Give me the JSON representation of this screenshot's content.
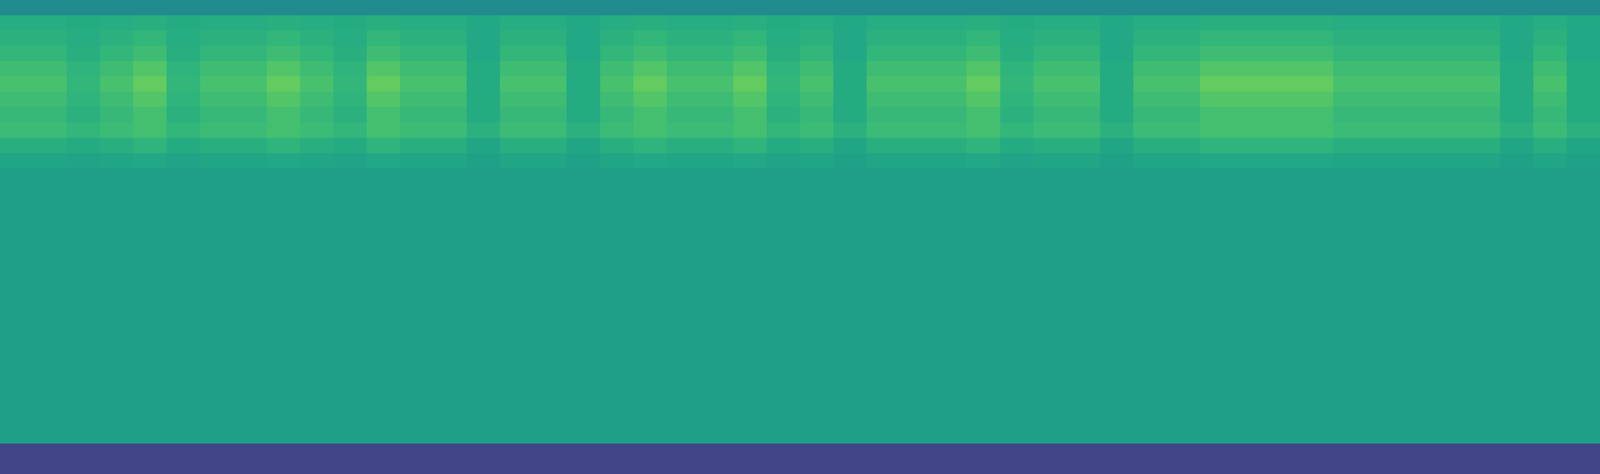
{
  "chart_data": {
    "type": "heatmap",
    "tick_labels": false,
    "zlim": [
      0,
      100
    ],
    "cells": [
      [
        48,
        48,
        48,
        48,
        48,
        48,
        48,
        48,
        48,
        48,
        48,
        48,
        48,
        48,
        48,
        48,
        48,
        48,
        48,
        48,
        48,
        48,
        48,
        48,
        48,
        48,
        48,
        48,
        48,
        48,
        48,
        48,
        48,
        48,
        48,
        48,
        48,
        48,
        48,
        48,
        48,
        48,
        48,
        48,
        48,
        48,
        48,
        48
      ],
      [
        62,
        62,
        61,
        62,
        63,
        61,
        62,
        62,
        63,
        62,
        61,
        63,
        62,
        62,
        60,
        62,
        62,
        60,
        62,
        63,
        62,
        62,
        63,
        61,
        62,
        60,
        62,
        62,
        62,
        63,
        61,
        62,
        62,
        60,
        62,
        62,
        63,
        63,
        63,
        63,
        62,
        62,
        62,
        62,
        62,
        60,
        62,
        60
      ],
      [
        64,
        64,
        62,
        64,
        66,
        62,
        64,
        64,
        66,
        64,
        62,
        66,
        64,
        64,
        60,
        64,
        64,
        60,
        64,
        66,
        64,
        64,
        66,
        62,
        64,
        60,
        64,
        64,
        64,
        66,
        62,
        64,
        64,
        60,
        64,
        64,
        66,
        66,
        66,
        66,
        64,
        64,
        64,
        64,
        64,
        60,
        64,
        60
      ],
      [
        66,
        66,
        63,
        66,
        69,
        63,
        66,
        66,
        69,
        66,
        63,
        69,
        66,
        66,
        60,
        66,
        66,
        60,
        66,
        69,
        66,
        66,
        69,
        63,
        66,
        60,
        66,
        66,
        66,
        69,
        63,
        66,
        66,
        60,
        66,
        66,
        69,
        69,
        69,
        69,
        66,
        66,
        66,
        66,
        66,
        60,
        66,
        60
      ],
      [
        69,
        69,
        65,
        69,
        73,
        65,
        69,
        69,
        73,
        69,
        65,
        73,
        69,
        69,
        61,
        69,
        69,
        61,
        69,
        73,
        69,
        69,
        73,
        65,
        69,
        61,
        69,
        69,
        69,
        73,
        65,
        69,
        69,
        61,
        69,
        69,
        73,
        73,
        73,
        73,
        69,
        69,
        69,
        69,
        69,
        61,
        69,
        61
      ],
      [
        71,
        71,
        66,
        71,
        76,
        66,
        71,
        71,
        76,
        71,
        66,
        76,
        71,
        71,
        61,
        71,
        71,
        61,
        71,
        76,
        71,
        71,
        76,
        66,
        71,
        61,
        71,
        71,
        71,
        76,
        66,
        71,
        71,
        61,
        71,
        71,
        76,
        76,
        76,
        76,
        71,
        71,
        71,
        71,
        71,
        61,
        71,
        61
      ],
      [
        69,
        69,
        65,
        69,
        73,
        65,
        69,
        69,
        73,
        69,
        65,
        73,
        69,
        69,
        61,
        69,
        69,
        61,
        69,
        73,
        69,
        69,
        73,
        65,
        69,
        61,
        69,
        69,
        69,
        73,
        65,
        69,
        69,
        61,
        69,
        69,
        73,
        73,
        73,
        73,
        69,
        69,
        69,
        69,
        69,
        61,
        69,
        61
      ],
      [
        67,
        67,
        64,
        67,
        70,
        64,
        67,
        67,
        70,
        67,
        64,
        70,
        67,
        67,
        61,
        67,
        67,
        61,
        67,
        70,
        67,
        67,
        70,
        64,
        67,
        61,
        67,
        67,
        67,
        70,
        64,
        67,
        67,
        61,
        67,
        67,
        70,
        70,
        70,
        70,
        67,
        67,
        67,
        67,
        67,
        61,
        67,
        61
      ],
      [
        68,
        68,
        66,
        68,
        70,
        66,
        68,
        68,
        70,
        68,
        66,
        70,
        68,
        68,
        64,
        68,
        68,
        64,
        68,
        70,
        68,
        68,
        70,
        66,
        68,
        64,
        68,
        68,
        68,
        70,
        66,
        68,
        68,
        64,
        68,
        68,
        70,
        70,
        70,
        70,
        68,
        68,
        68,
        68,
        68,
        64,
        68,
        64
      ],
      [
        63,
        63,
        61,
        63,
        65,
        61,
        63,
        63,
        65,
        63,
        61,
        65,
        63,
        63,
        59,
        63,
        63,
        59,
        63,
        65,
        63,
        63,
        65,
        61,
        63,
        59,
        63,
        63,
        63,
        65,
        61,
        63,
        63,
        59,
        63,
        63,
        65,
        65,
        65,
        65,
        63,
        63,
        63,
        63,
        63,
        59,
        63,
        59
      ],
      [
        59,
        59,
        58,
        59,
        60,
        58,
        59,
        59,
        60,
        59,
        58,
        60,
        59,
        59,
        57,
        59,
        59,
        57,
        59,
        60,
        59,
        59,
        60,
        58,
        59,
        57,
        59,
        59,
        59,
        60,
        58,
        59,
        59,
        57,
        59,
        59,
        60,
        60,
        60,
        60,
        59,
        59,
        59,
        59,
        59,
        57,
        59,
        57
      ],
      [
        56,
        56,
        56,
        56,
        56,
        56,
        56,
        56,
        56,
        56,
        56,
        56,
        56,
        56,
        56,
        56,
        56,
        56,
        56,
        56,
        56,
        56,
        56,
        56,
        56,
        56,
        56,
        56,
        56,
        56,
        56,
        56,
        56,
        56,
        56,
        56,
        56,
        56,
        56,
        56,
        56,
        56,
        56,
        56,
        56,
        56,
        56,
        56
      ],
      [
        56,
        56,
        56,
        56,
        56,
        56,
        56,
        56,
        56,
        56,
        56,
        56,
        56,
        56,
        56,
        56,
        56,
        56,
        56,
        56,
        56,
        56,
        56,
        56,
        56,
        56,
        56,
        56,
        56,
        56,
        56,
        56,
        56,
        56,
        56,
        56,
        56,
        56,
        56,
        56,
        56,
        56,
        56,
        56,
        56,
        56,
        56,
        56
      ],
      [
        56,
        56,
        56,
        56,
        56,
        56,
        56,
        56,
        56,
        56,
        56,
        56,
        56,
        56,
        56,
        56,
        56,
        56,
        56,
        56,
        56,
        56,
        56,
        56,
        56,
        56,
        56,
        56,
        56,
        56,
        56,
        56,
        56,
        56,
        56,
        56,
        56,
        56,
        56,
        56,
        56,
        56,
        56,
        56,
        56,
        56,
        56,
        56
      ],
      [
        56,
        56,
        56,
        56,
        56,
        56,
        56,
        56,
        56,
        56,
        56,
        56,
        56,
        56,
        56,
        56,
        56,
        56,
        56,
        56,
        56,
        56,
        56,
        56,
        56,
        56,
        56,
        56,
        56,
        56,
        56,
        56,
        56,
        56,
        56,
        56,
        56,
        56,
        56,
        56,
        56,
        56,
        56,
        56,
        56,
        56,
        56,
        56
      ],
      [
        56,
        56,
        56,
        56,
        56,
        56,
        56,
        56,
        56,
        56,
        56,
        56,
        56,
        56,
        56,
        56,
        56,
        56,
        56,
        56,
        56,
        56,
        56,
        56,
        56,
        56,
        56,
        56,
        56,
        56,
        56,
        56,
        56,
        56,
        56,
        56,
        56,
        56,
        56,
        56,
        56,
        56,
        56,
        56,
        56,
        56,
        56,
        56
      ],
      [
        56,
        56,
        56,
        56,
        56,
        56,
        56,
        56,
        56,
        56,
        56,
        56,
        56,
        56,
        56,
        56,
        56,
        56,
        56,
        56,
        56,
        56,
        56,
        56,
        56,
        56,
        56,
        56,
        56,
        56,
        56,
        56,
        56,
        56,
        56,
        56,
        56,
        56,
        56,
        56,
        56,
        56,
        56,
        56,
        56,
        56,
        56,
        56
      ],
      [
        56,
        56,
        56,
        56,
        56,
        56,
        56,
        56,
        56,
        56,
        56,
        56,
        56,
        56,
        56,
        56,
        56,
        56,
        56,
        56,
        56,
        56,
        56,
        56,
        56,
        56,
        56,
        56,
        56,
        56,
        56,
        56,
        56,
        56,
        56,
        56,
        56,
        56,
        56,
        56,
        56,
        56,
        56,
        56,
        56,
        56,
        56,
        56
      ],
      [
        56,
        56,
        56,
        56,
        56,
        56,
        56,
        56,
        56,
        56,
        56,
        56,
        56,
        56,
        56,
        56,
        56,
        56,
        56,
        56,
        56,
        56,
        56,
        56,
        56,
        56,
        56,
        56,
        56,
        56,
        56,
        56,
        56,
        56,
        56,
        56,
        56,
        56,
        56,
        56,
        56,
        56,
        56,
        56,
        56,
        56,
        56,
        56
      ],
      [
        56,
        56,
        56,
        56,
        56,
        56,
        56,
        56,
        56,
        56,
        56,
        56,
        56,
        56,
        56,
        56,
        56,
        56,
        56,
        56,
        56,
        56,
        56,
        56,
        56,
        56,
        56,
        56,
        56,
        56,
        56,
        56,
        56,
        56,
        56,
        56,
        56,
        56,
        56,
        56,
        56,
        56,
        56,
        56,
        56,
        56,
        56,
        56
      ],
      [
        56,
        56,
        56,
        56,
        56,
        56,
        56,
        56,
        56,
        56,
        56,
        56,
        56,
        56,
        56,
        56,
        56,
        56,
        56,
        56,
        56,
        56,
        56,
        56,
        56,
        56,
        56,
        56,
        56,
        56,
        56,
        56,
        56,
        56,
        56,
        56,
        56,
        56,
        56,
        56,
        56,
        56,
        56,
        56,
        56,
        56,
        56,
        56
      ],
      [
        56,
        56,
        56,
        56,
        56,
        56,
        56,
        56,
        56,
        56,
        56,
        56,
        56,
        56,
        56,
        56,
        56,
        56,
        56,
        56,
        56,
        56,
        56,
        56,
        56,
        56,
        56,
        56,
        56,
        56,
        56,
        56,
        56,
        56,
        56,
        56,
        56,
        56,
        56,
        56,
        56,
        56,
        56,
        56,
        56,
        56,
        56,
        56
      ],
      [
        56,
        56,
        56,
        56,
        56,
        56,
        56,
        56,
        56,
        56,
        56,
        56,
        56,
        56,
        56,
        56,
        56,
        56,
        56,
        56,
        56,
        56,
        56,
        56,
        56,
        56,
        56,
        56,
        56,
        56,
        56,
        56,
        56,
        56,
        56,
        56,
        56,
        56,
        56,
        56,
        56,
        56,
        56,
        56,
        56,
        56,
        56,
        56
      ],
      [
        56,
        56,
        56,
        56,
        56,
        56,
        56,
        56,
        56,
        56,
        56,
        56,
        56,
        56,
        56,
        56,
        56,
        56,
        56,
        56,
        56,
        56,
        56,
        56,
        56,
        56,
        56,
        56,
        56,
        56,
        56,
        56,
        56,
        56,
        56,
        56,
        56,
        56,
        56,
        56,
        56,
        56,
        56,
        56,
        56,
        56,
        56,
        56
      ],
      [
        56,
        56,
        56,
        56,
        56,
        56,
        56,
        56,
        56,
        56,
        56,
        56,
        56,
        56,
        56,
        56,
        56,
        56,
        56,
        56,
        56,
        56,
        56,
        56,
        56,
        56,
        56,
        56,
        56,
        56,
        56,
        56,
        56,
        56,
        56,
        56,
        56,
        56,
        56,
        56,
        56,
        56,
        56,
        56,
        56,
        56,
        56,
        56
      ],
      [
        56,
        56,
        56,
        56,
        56,
        56,
        56,
        56,
        56,
        56,
        56,
        56,
        56,
        56,
        56,
        56,
        56,
        56,
        56,
        56,
        56,
        56,
        56,
        56,
        56,
        56,
        56,
        56,
        56,
        56,
        56,
        56,
        56,
        56,
        56,
        56,
        56,
        56,
        56,
        56,
        56,
        56,
        56,
        56,
        56,
        56,
        56,
        56
      ],
      [
        56,
        56,
        56,
        56,
        56,
        56,
        56,
        56,
        56,
        56,
        56,
        56,
        56,
        56,
        56,
        56,
        56,
        56,
        56,
        56,
        56,
        56,
        56,
        56,
        56,
        56,
        56,
        56,
        56,
        56,
        56,
        56,
        56,
        56,
        56,
        56,
        56,
        56,
        56,
        56,
        56,
        56,
        56,
        56,
        56,
        56,
        56,
        56
      ],
      [
        56,
        56,
        56,
        56,
        56,
        56,
        56,
        56,
        56,
        56,
        56,
        56,
        56,
        56,
        56,
        56,
        56,
        56,
        56,
        56,
        56,
        56,
        56,
        56,
        56,
        56,
        56,
        56,
        56,
        56,
        56,
        56,
        56,
        56,
        56,
        56,
        56,
        56,
        56,
        56,
        56,
        56,
        56,
        56,
        56,
        56,
        56,
        56
      ],
      [
        56,
        56,
        56,
        56,
        56,
        56,
        56,
        56,
        56,
        56,
        56,
        56,
        56,
        56,
        56,
        56,
        56,
        56,
        56,
        56,
        56,
        56,
        56,
        56,
        56,
        56,
        56,
        56,
        56,
        56,
        56,
        56,
        56,
        56,
        56,
        56,
        56,
        56,
        56,
        56,
        56,
        56,
        56,
        56,
        56,
        56,
        56,
        56
      ],
      [
        20,
        20,
        20,
        20,
        20,
        20,
        20,
        20,
        20,
        20,
        20,
        20,
        20,
        20,
        20,
        20,
        20,
        20,
        20,
        20,
        20,
        20,
        20,
        20,
        20,
        20,
        20,
        20,
        20,
        20,
        20,
        20,
        20,
        20,
        20,
        20,
        20,
        20,
        20,
        20,
        20,
        20,
        20,
        20,
        20,
        20,
        20,
        20
      ],
      [
        20,
        20,
        20,
        20,
        20,
        20,
        20,
        20,
        20,
        20,
        20,
        20,
        20,
        20,
        20,
        20,
        20,
        20,
        20,
        20,
        20,
        20,
        20,
        20,
        20,
        20,
        20,
        20,
        20,
        20,
        20,
        20,
        20,
        20,
        20,
        20,
        20,
        20,
        20,
        20,
        20,
        20,
        20,
        20,
        20,
        20,
        20,
        20
      ]
    ]
  }
}
